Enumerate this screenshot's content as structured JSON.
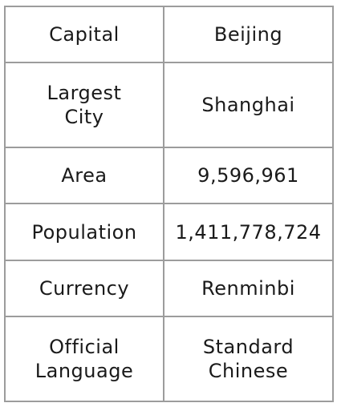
{
  "table": {
    "rows": [
      {
        "label": "Capital",
        "value": "Beijing"
      },
      {
        "label": "Largest\nCity",
        "value": "Shanghai"
      },
      {
        "label": "Area",
        "value": "9,596,961"
      },
      {
        "label": "Population",
        "value": "1,411,778,724"
      },
      {
        "label": "Currency",
        "value": "Renminbi"
      },
      {
        "label": "Official\nLanguage",
        "value": "Standard\nChinese"
      }
    ]
  }
}
